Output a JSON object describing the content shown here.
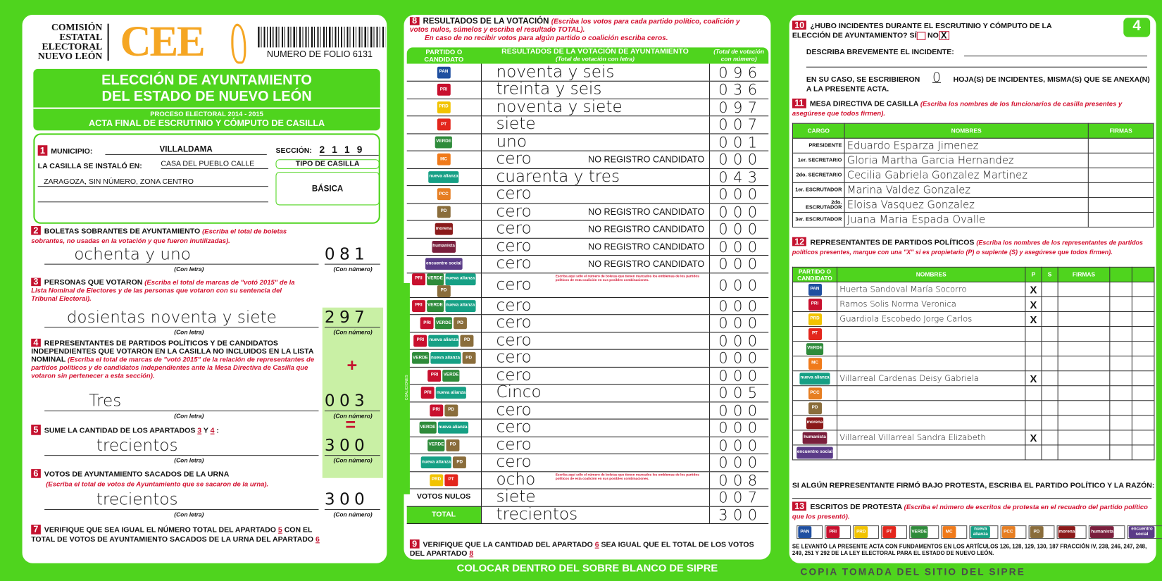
{
  "header": {
    "org_lines": [
      "COMISIÓN",
      "ESTATAL",
      "ELECTORAL",
      "NUEVO LEÓN"
    ],
    "logo_text": "CEE",
    "folio": "NUMERO DE FOLIO 6131",
    "title_lines": [
      "ELECCIÓN DE AYUNTAMIENTO",
      "DEL ESTADO DE NUEVO LEÓN"
    ],
    "process": "PROCESO ELECTORAL 2014 - 2015",
    "subtitle": "ACTA FINAL DE ESCRUTINIO Y CÓMPUTO DE CASILLA",
    "sheet_number": "4"
  },
  "s1": {
    "n": "1",
    "municipio_label": "MUNICIPIO:",
    "municipio": "VILLALDAMA",
    "seccion_label": "SECCIÓN:",
    "seccion": "2 1 1 9",
    "instalo_label": "LA CASILLA SE INSTALÓ EN:",
    "address1": "CASA DEL PUEBLO CALLE",
    "address2": "ZARAGOZA, SIN NÚMERO, ZONA CENTRO",
    "tipo_label": "TIPO DE CASILLA",
    "tipo": "BÁSICA"
  },
  "s2": {
    "n": "2",
    "title": "BOLETAS SOBRANTES DE AYUNTAMIENTO",
    "note": "(Escriba el total de boletas sobrantes, no usadas en la votación y que fueron inutilizadas).",
    "letra": "ochenta y uno",
    "numero": "081"
  },
  "s3": {
    "n": "3",
    "title": "PERSONAS QUE VOTARON",
    "note": "(Escriba el total de marcas de \"votó 2015\" de la Lista Nominal de Electores y de las personas que votaron con su sentencia del Tribunal Electoral).",
    "letra": "dosientas noventa y siete",
    "numero": "297"
  },
  "s4": {
    "n": "4",
    "title": "REPRESENTANTES DE PARTIDOS POLÍTICOS Y DE CANDIDATOS INDEPENDIENTES QUE VOTARON EN LA CASILLA NO INCLUIDOS EN LA LISTA NOMINAL",
    "note": "(Escriba el total de marcas de \"votó 2015\" de la relación de representantes de partidos políticos y de candidatos independientes ante la Mesa Directiva de Casilla que votaron sin pertenecer a esta sección).",
    "plus": "+",
    "letra": "Tres",
    "numero": "003"
  },
  "s5": {
    "n": "5",
    "title": "SUME LA CANTIDAD DE LOS APARTADOS",
    "a": "3",
    "y": "Y",
    "b": "4",
    "equals": "=",
    "letra": "trecientos",
    "numero": "300"
  },
  "s6": {
    "n": "6",
    "title": "VOTOS DE AYUNTAMIENTO SACADOS DE LA URNA",
    "note": "(Escriba el total de votos de Ayuntamiento que se sacaron de la urna).",
    "letra": "trecientos",
    "numero": "300"
  },
  "s7": {
    "n": "7",
    "text1": "VERIFIQUE QUE SEA IGUAL EL NÚMERO TOTAL DEL APARTADO",
    "a": "5",
    "text2": "CON EL TOTAL DE VOTOS DE AYUNTAMIENTO SACADOS DE LA URNA DEL APARTADO",
    "b": "6"
  },
  "labels": {
    "con_letra": "(Con letra)",
    "con_numero": "(Con número)"
  },
  "s8": {
    "n": "8",
    "title": "RESULTADOS DE LA VOTACIÓN",
    "note1": "(Escriba los votos para cada partido político, coalición y votos nulos, súmelos y escriba el resultado TOTAL).",
    "note2": "En caso de no recibir votos para algún partido o coalición escriba ceros.",
    "col1": "PARTIDO O CANDIDATO",
    "col2": "RESULTADOS DE LA VOTACIÓN DE AYUNTAMIENTO",
    "col2_sub": "(Total de votación con letra)",
    "col3": "(Total de votación con número)",
    "nrc": "NO REGISTRO CANDIDATO",
    "coalition_note": "Escriba aquí sólo el número de boletas que tienen marcados los emblemas de los partidos políticos de esta coalición en sus posibles combinaciones.",
    "nulos_label": "VOTOS NULOS",
    "total_label": "TOTAL",
    "parties": [
      {
        "icons": [
          "PAN"
        ],
        "letra": "noventa y seis",
        "numero": "096"
      },
      {
        "icons": [
          "PRI"
        ],
        "letra": "treinta y seis",
        "numero": "036"
      },
      {
        "icons": [
          "PRD"
        ],
        "letra": "noventa y siete",
        "numero": "097"
      },
      {
        "icons": [
          "PT"
        ],
        "letra": "siete",
        "numero": "007"
      },
      {
        "icons": [
          "VERDE"
        ],
        "letra": "uno",
        "numero": "001"
      },
      {
        "icons": [
          "MC"
        ],
        "letra": "cero",
        "numero": "000",
        "nrc": true
      },
      {
        "icons": [
          "nueva alianza"
        ],
        "letra": "cuarenta y tres",
        "numero": "043"
      },
      {
        "icons": [
          "PCC"
        ],
        "letra": "cero",
        "numero": "000"
      },
      {
        "icons": [
          "PD"
        ],
        "letra": "cero",
        "numero": "000",
        "nrc": true
      },
      {
        "icons": [
          "morena"
        ],
        "letra": "cero",
        "numero": "000",
        "nrc": true
      },
      {
        "icons": [
          "humanista"
        ],
        "letra": "cero",
        "numero": "000",
        "nrc": true
      },
      {
        "icons": [
          "encuentro social"
        ],
        "letra": "cero",
        "numero": "000",
        "nrc": true
      }
    ],
    "coalitions": [
      {
        "icons": [
          "PRI",
          "VERDE",
          "nueva alianza",
          "PD"
        ],
        "letra": "cero",
        "numero": "000",
        "note": true
      },
      {
        "icons": [
          "PRI",
          "VERDE",
          "nueva alianza"
        ],
        "letra": "cero",
        "numero": "000"
      },
      {
        "icons": [
          "PRI",
          "VERDE",
          "PD"
        ],
        "letra": "cero",
        "numero": "000"
      },
      {
        "icons": [
          "PRI",
          "nueva alianza",
          "PD"
        ],
        "letra": "cero",
        "numero": "000"
      },
      {
        "icons": [
          "VERDE",
          "nueva alianza",
          "PD"
        ],
        "letra": "cero",
        "numero": "000"
      },
      {
        "icons": [
          "PRI",
          "VERDE"
        ],
        "letra": "cero",
        "numero": "000"
      },
      {
        "icons": [
          "PRI",
          "nueva alianza"
        ],
        "letra": "Cinco",
        "numero": "005"
      },
      {
        "icons": [
          "PRI",
          "PD"
        ],
        "letra": "cero",
        "numero": "000"
      },
      {
        "icons": [
          "VERDE",
          "nueva alianza"
        ],
        "letra": "cero",
        "numero": "000"
      },
      {
        "icons": [
          "VERDE",
          "PD"
        ],
        "letra": "cero",
        "numero": "000"
      },
      {
        "icons": [
          "nueva alianza",
          "PD"
        ],
        "letra": "cero",
        "numero": "000"
      },
      {
        "icons": [
          "PRD",
          "PT"
        ],
        "letra": "ocho",
        "numero": "008",
        "note": true
      }
    ],
    "nulos": {
      "letra": "siete",
      "numero": "007"
    },
    "total": {
      "letra": "trecientos",
      "numero": "300"
    },
    "coalitions_side": "COALICIONES"
  },
  "s9": {
    "n": "9",
    "text1": "VERIFIQUE QUE LA CANTIDAD DEL APARTADO",
    "a": "6",
    "text2": "SEA IGUAL QUE EL TOTAL DE LOS VOTOS DEL APARTADO",
    "b": "8"
  },
  "footer": "COLOCAR DENTRO DEL SOBRE BLANCO DE SIPRE",
  "watermark": "COPIA TOMADA DEL SITIO DEL SIPRE",
  "s10": {
    "n": "10",
    "q": "¿HUBO INCIDENTES DURANTE EL ESCRUTINIO Y CÓMPUTO DE LA ELECCIÓN DE AYUNTAMIENTO?",
    "si": "SÍ",
    "no": "NO",
    "no_mark": "X",
    "describe": "DESCRIBA BREVEMENTE EL INCIDENTE:",
    "caso1": "EN SU CASO, SE ESCRIBIERON",
    "hojas": "0",
    "caso2": "HOJA(S) DE INCIDENTES, MISMA(S) QUE SE ANEXA(N) A LA PRESENTE ACTA."
  },
  "s11": {
    "n": "11",
    "title": "MESA DIRECTIVA DE CASILLA",
    "note": "(Escriba los nombres de los funcionarios de casilla presentes y asegúrese que todos firmen).",
    "cols": [
      "CARGO",
      "NOMBRES",
      "FIRMAS"
    ],
    "rows": [
      {
        "cargo": "PRESIDENTE",
        "nombre": "Eduardo Esparza Jimenez"
      },
      {
        "cargo": "1er. SECRETARIO",
        "nombre": "Gloria Martha Garcia Hernandez"
      },
      {
        "cargo": "2do. SECRETARIO",
        "nombre": "Cecilia Gabriela Gonzalez Martinez"
      },
      {
        "cargo": "1er. ESCRUTADOR",
        "nombre": "Marina Valdez Gonzalez"
      },
      {
        "cargo": "2do. ESCRUTADOR",
        "nombre": "Eloisa Vasquez Gonzalez"
      },
      {
        "cargo": "3er. ESCRUTADOR",
        "nombre": "Juana Maria Espada Ovalle"
      }
    ]
  },
  "s12": {
    "n": "12",
    "title": "REPRESENTANTES DE PARTIDOS POLÍTICOS",
    "note": "(Escriba los nombres de los representantes de partidos políticos presentes, marque con una \"X\" si es propietario (P) o suplente (S) y asegúrese que todos firmen).",
    "cols": [
      "PARTIDO O CANDIDATO",
      "NOMBRES",
      "P",
      "S",
      "FIRMAS"
    ],
    "rows": [
      {
        "icon": "PAN",
        "nombre": "Huerta Sandoval María Socorro",
        "p": "X"
      },
      {
        "icon": "PRI",
        "nombre": "Ramos Solis Norma Veronica",
        "p": "X"
      },
      {
        "icon": "PRD",
        "nombre": "Guardiola Escobedo Jorge Carlos",
        "p": "X"
      },
      {
        "icon": "PT",
        "nombre": ""
      },
      {
        "icon": "VERDE",
        "nombre": ""
      },
      {
        "icon": "MC",
        "nombre": ""
      },
      {
        "icon": "nueva alianza",
        "nombre": "Villarreal Cardenas Deisy Gabriela",
        "p": "X"
      },
      {
        "icon": "PCC",
        "nombre": ""
      },
      {
        "icon": "PD",
        "nombre": ""
      },
      {
        "icon": "morena",
        "nombre": ""
      },
      {
        "icon": "humanista",
        "nombre": "Villarreal Villarreal Sandra Elizabeth",
        "p": "X"
      },
      {
        "icon": "encuentro social",
        "nombre": ""
      }
    ],
    "protest_line": "SI ALGÚN REPRESENTANTE FIRMÓ BAJO PROTESTA, ESCRIBA EL PARTIDO POLÍTICO Y LA RAZÓN:"
  },
  "s13": {
    "n": "13",
    "title": "ESCRITOS DE PROTESTA",
    "note": "(Escriba el número de escritos de protesta en el recuadro del partido político que los presentó).",
    "icons": [
      "PAN",
      "PRI",
      "PRD",
      "PT",
      "VERDE",
      "MC",
      "nueva alianza",
      "PCC",
      "PD",
      "morena",
      "humanista",
      "encuentro social"
    ],
    "legal": "SE LEVANTÓ LA PRESENTE ACTA CON FUNDAMENTOS EN LOS ARTÍCULOS 126, 128, 129, 130, 187 FRACCIÓN IV, 238, 246, 247, 248, 249, 251 Y 292 DE LA LEY ELECTORAL PARA EL ESTADO DE NUEVO LEÓN."
  },
  "colors": {
    "green": "#4fd41e",
    "red": "#c4122f",
    "orange": "#f5a623",
    "PAN": "#1f4fa0",
    "PRI": "#c8102e",
    "PRD": "#f2c300",
    "PT": "#e3261c",
    "VERDE": "#2e8b3a",
    "MC": "#f07a1a",
    "nueva alianza": "#16a085",
    "PCC": "#e67e22",
    "PD": "#8a6d3b",
    "morena": "#8b1a1a",
    "humanista": "#7a1f3d",
    "encuentro social": "#5b3c88"
  }
}
